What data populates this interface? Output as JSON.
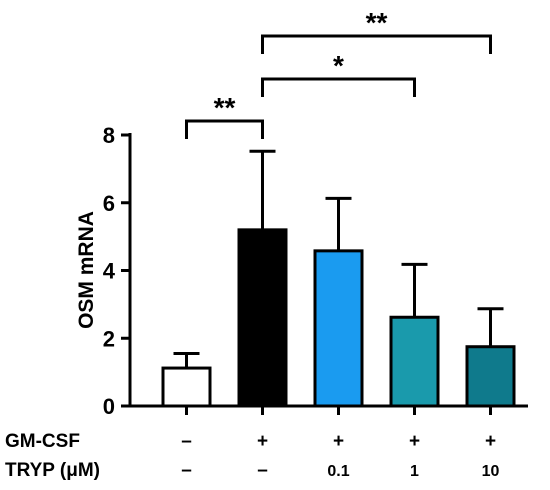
{
  "chart_data": {
    "type": "bar",
    "ylabel": "OSM mRNA",
    "xlabel": "",
    "title": "",
    "ylim": [
      0,
      8
    ],
    "yticks": [
      "0",
      "2",
      "4",
      "6",
      "8"
    ],
    "values": [
      1.12,
      5.2,
      4.58,
      2.62,
      1.75
    ],
    "errors": [
      0.43,
      2.32,
      1.55,
      1.56,
      1.12
    ],
    "bar_colors": [
      "#ffffff",
      "#000000",
      "#1a9bf0",
      "#1a9aac",
      "#0f7a8c"
    ],
    "conditions": [
      {
        "label": "GM-CSF",
        "values": [
          "–",
          "+",
          "+",
          "+",
          "+"
        ]
      },
      {
        "label": "TRYP (μM)",
        "values": [
          "–",
          "–",
          "0.1",
          "1",
          "10"
        ]
      }
    ],
    "significance": [
      {
        "from": 0,
        "to": 1,
        "label": "**"
      },
      {
        "from": 1,
        "to": 3,
        "label": "*"
      },
      {
        "from": 1,
        "to": 4,
        "label": "**"
      }
    ]
  }
}
